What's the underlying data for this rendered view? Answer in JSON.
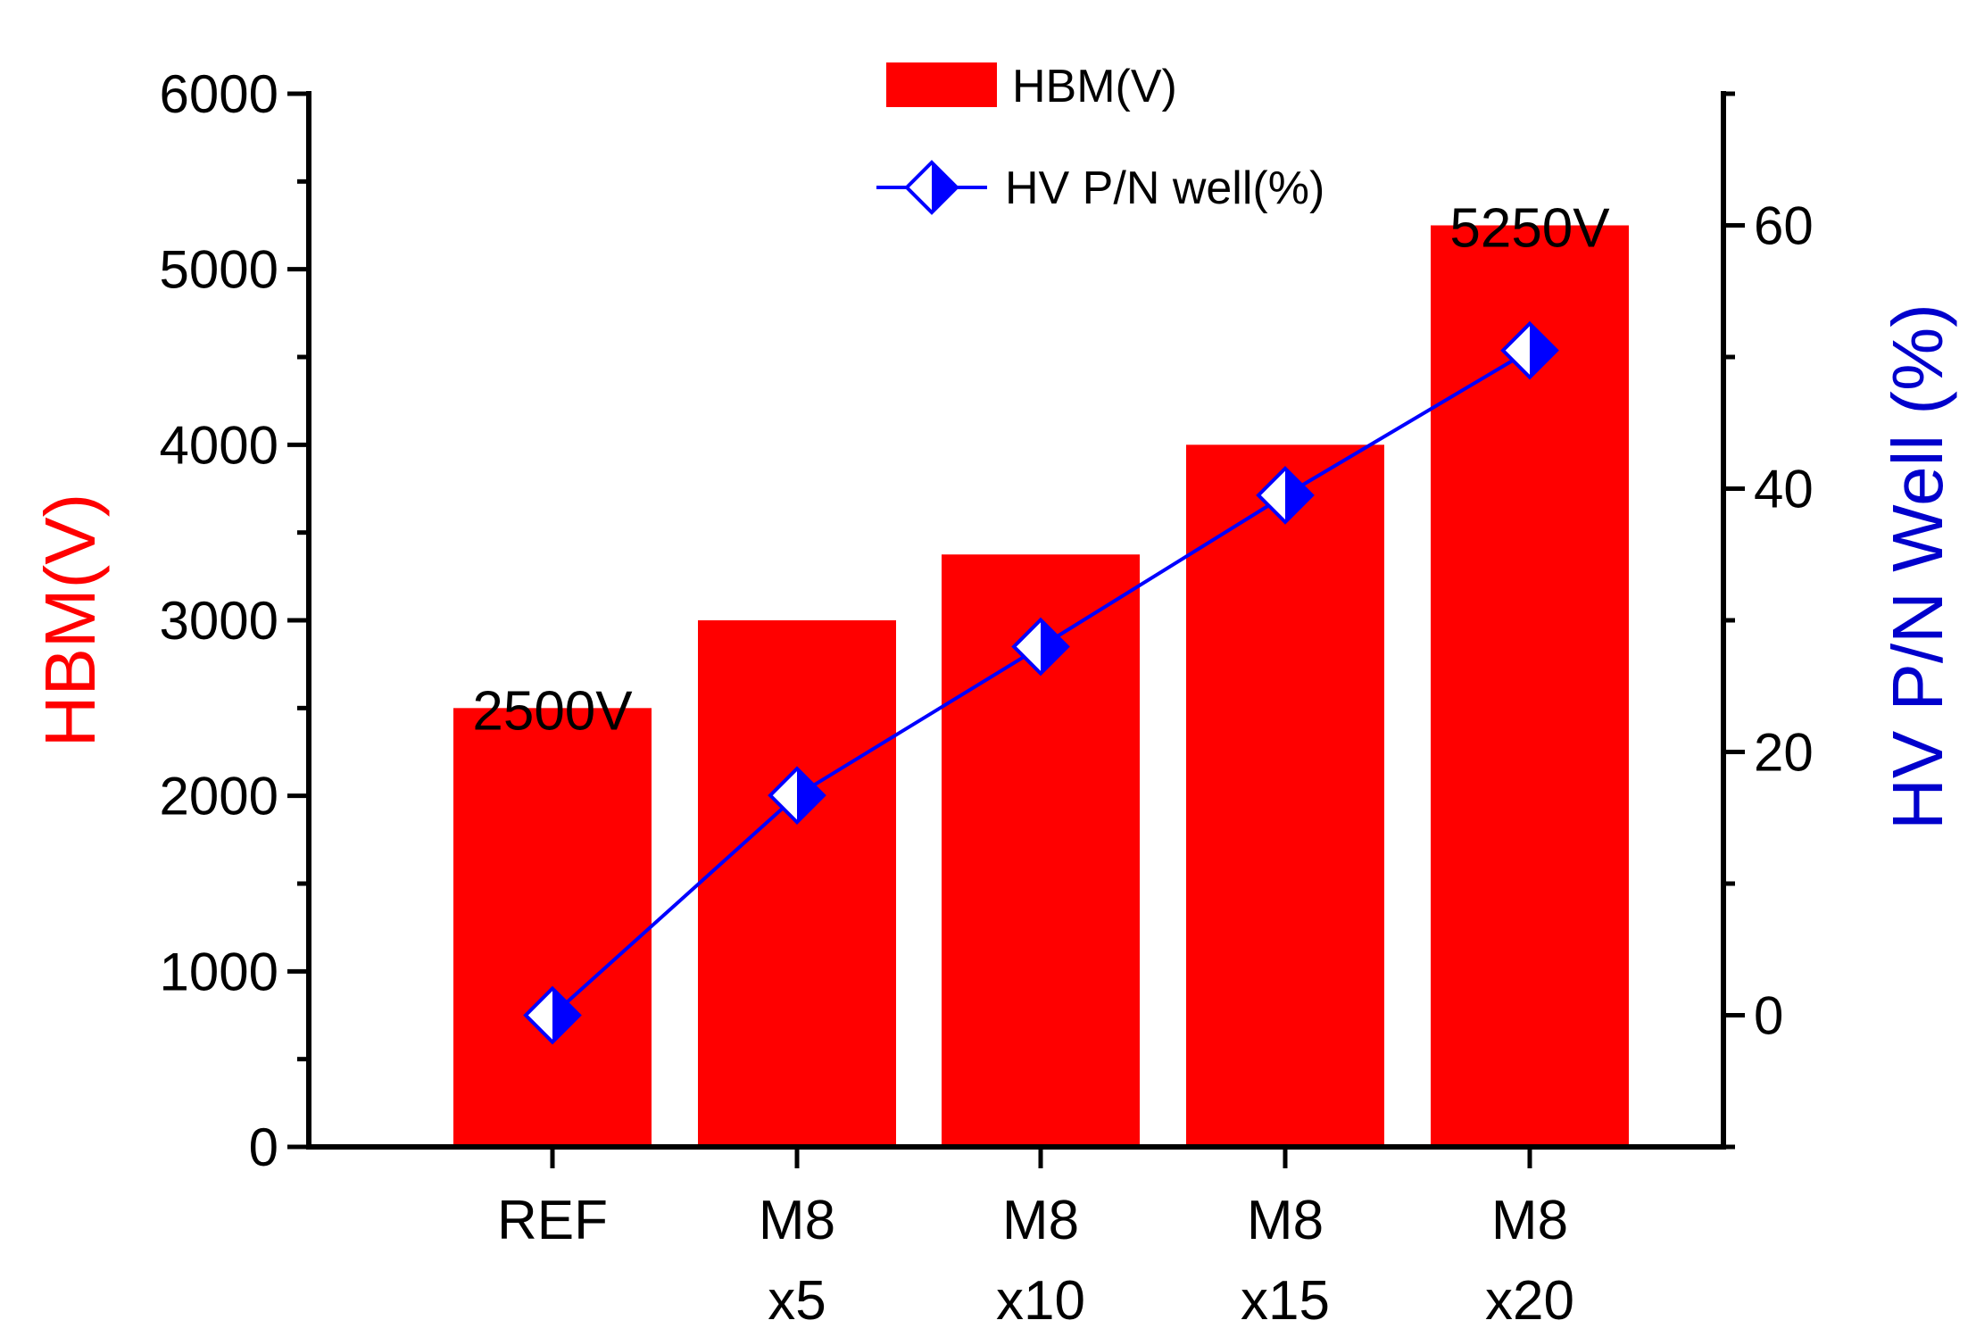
{
  "chart_data": {
    "type": "bar",
    "categories": [
      [
        "REF"
      ],
      [
        "M8",
        "x5"
      ],
      [
        "M8",
        "x10"
      ],
      [
        "M8",
        "x15"
      ],
      [
        "M8",
        "x20"
      ]
    ],
    "series": [
      {
        "name": "HBM(V)",
        "kind": "bar",
        "axis": "left",
        "color": "#ff0000",
        "values": [
          2500,
          3000,
          3375,
          4000,
          5250
        ]
      },
      {
        "name": "HV P/N well(%)",
        "kind": "line",
        "axis": "right",
        "color": "#0000ff",
        "marker": "half-filled-diamond",
        "values": [
          0,
          16.7,
          28.0,
          39.5,
          50.5
        ]
      }
    ],
    "annotations": [
      {
        "text": "2500V",
        "category_index": 0,
        "series": 0
      },
      {
        "text": "5250V",
        "category_index": 4,
        "series": 0
      }
    ],
    "ylabel": "HBM(V)",
    "y2label": "HV P/N Well (%)",
    "xlabel": "",
    "ylim": [
      0,
      6000
    ],
    "y_ticks": [
      0,
      1000,
      2000,
      3000,
      4000,
      5000,
      6000
    ],
    "y_minor_step": 500,
    "y2lim": [
      -10,
      70
    ],
    "y2_ticks": [
      0,
      20,
      40,
      60
    ],
    "y2_minor_step": 10,
    "legend_position": "top-center",
    "grid": false,
    "colors": {
      "axis": "#000000",
      "bar": "#ff0000",
      "line": "#0000ff",
      "ylabel": "#ff0000",
      "y2label": "#0000cc"
    }
  }
}
